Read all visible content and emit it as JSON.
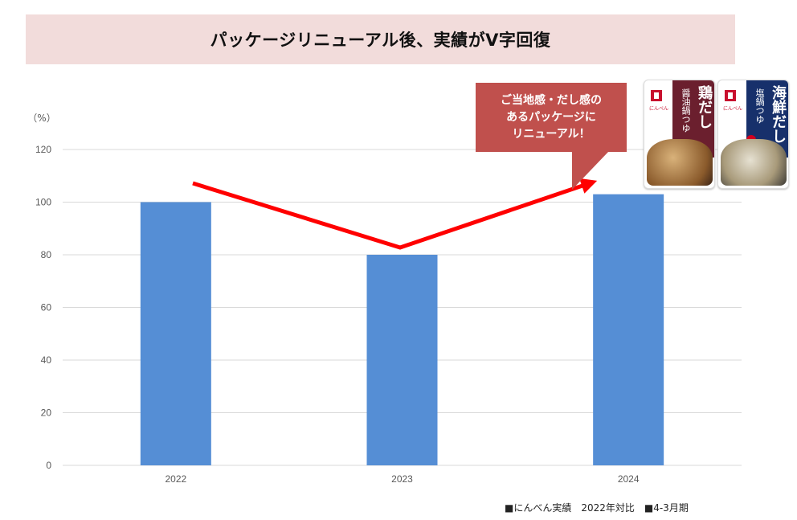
{
  "title": "パッケージリニューアル後、実績がV字回復",
  "chart_data": {
    "type": "bar",
    "categories": [
      "2022",
      "2023",
      "2024"
    ],
    "values": [
      100,
      80,
      103
    ],
    "ylim": [
      0,
      120
    ],
    "yticks": [
      0,
      20,
      40,
      60,
      80,
      100,
      120
    ],
    "y_unit_label": "（%）",
    "bar_color": "#558ed5",
    "grid": true,
    "trend_arrow": {
      "color": "#ff0000",
      "direction": "down-then-up"
    },
    "title": "",
    "xlabel": "",
    "ylabel": ""
  },
  "callout": {
    "lines": [
      "ご当地感・だし感の",
      "あるパッケージに",
      "リニューアル！"
    ],
    "color": "#c0504d"
  },
  "products": [
    {
      "name": "鶏だし",
      "sub": "醤油鍋つゆ",
      "brand": "にんべん"
    },
    {
      "name": "海鮮だし",
      "sub": "塩鍋つゆ",
      "brand": "にんべん"
    }
  ],
  "footnote": "■にんべん実績　2022年対比　■4-3月期"
}
